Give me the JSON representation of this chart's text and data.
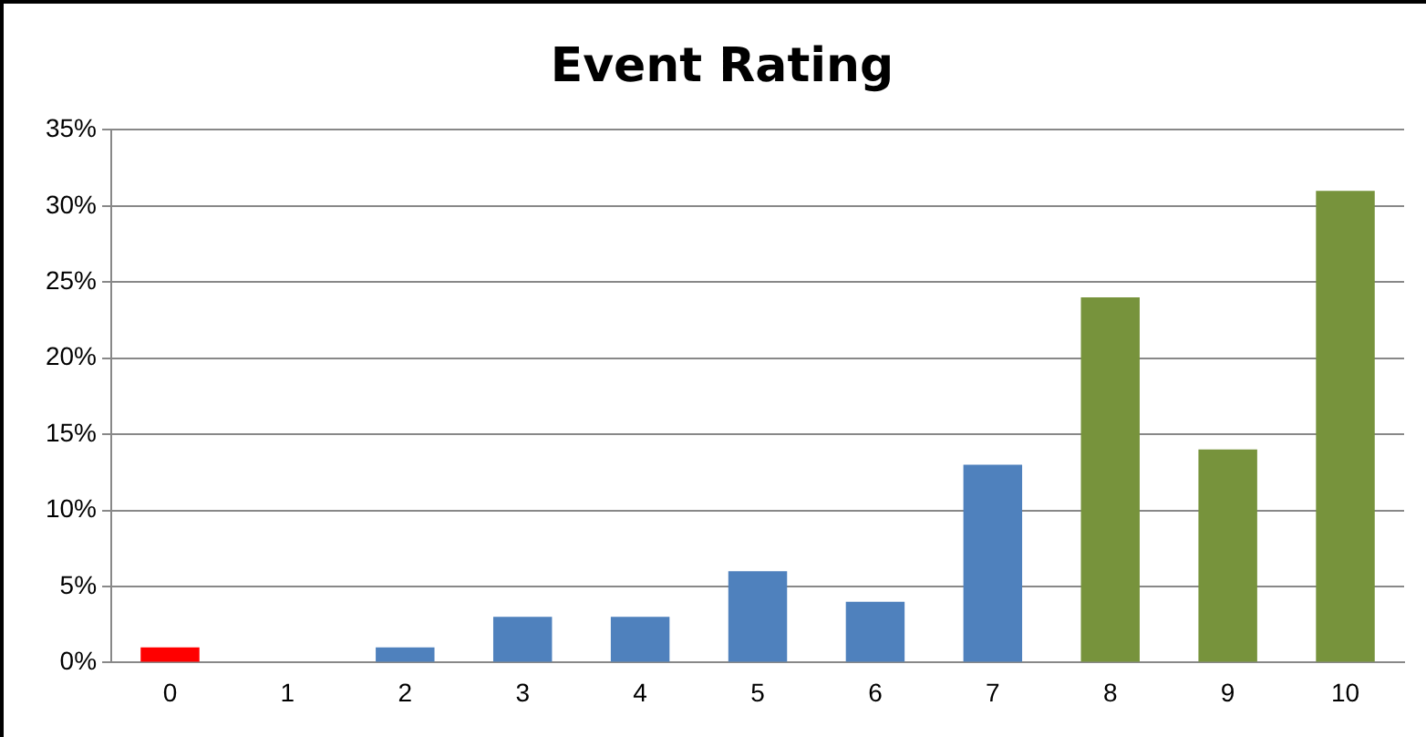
{
  "chart_data": {
    "type": "bar",
    "title": "Event Rating",
    "categories": [
      "0",
      "1",
      "2",
      "3",
      "4",
      "5",
      "6",
      "7",
      "8",
      "9",
      "10"
    ],
    "values": [
      1,
      0,
      1,
      3,
      3,
      6,
      4,
      13,
      24,
      14,
      31
    ],
    "colors": [
      "#ff0000",
      "#4f81bd",
      "#4f81bd",
      "#4f81bd",
      "#4f81bd",
      "#4f81bd",
      "#4f81bd",
      "#4f81bd",
      "#77933c",
      "#77933c",
      "#77933c"
    ],
    "ylim": [
      0,
      35
    ],
    "yticks": [
      {
        "value": 0,
        "label": "0%"
      },
      {
        "value": 5,
        "label": "5%"
      },
      {
        "value": 10,
        "label": "10%"
      },
      {
        "value": 15,
        "label": "15%"
      },
      {
        "value": 20,
        "label": "20%"
      },
      {
        "value": 25,
        "label": "25%"
      },
      {
        "value": 30,
        "label": "30%"
      },
      {
        "value": 35,
        "label": "35%"
      }
    ],
    "grid": "y",
    "legend": false
  }
}
